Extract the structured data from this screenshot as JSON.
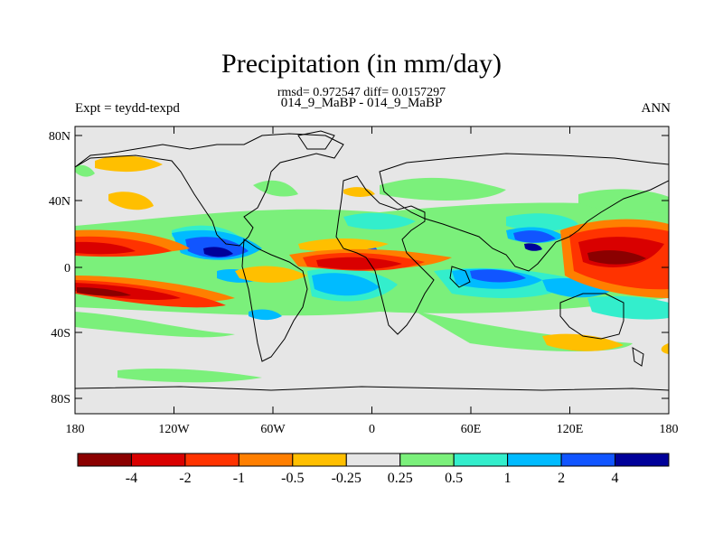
{
  "title": "Precipitation (in mm/day)",
  "stats_line": "rmsd= 0.972547 diff= 0.0157297",
  "case_line": "014_9_MaBP - 014_9_MaBP",
  "left_string": "Expt = teydd-texpd",
  "right_string": "ANN",
  "lat_labels": [
    "80N",
    "40N",
    "0",
    "40S",
    "80S"
  ],
  "lon_labels": [
    "180",
    "120W",
    "60W",
    "0",
    "60E",
    "120E",
    "180"
  ],
  "colorbar": {
    "colors": [
      "#8b0000",
      "#d90000",
      "#ff3300",
      "#ff7f00",
      "#ffbf00",
      "#e6e6e6",
      "#7bf07b",
      "#33eecc",
      "#00bbff",
      "#1155ff",
      "#000099"
    ],
    "labels": [
      "-4",
      "-2",
      "-1",
      "-0.5",
      "-0.25",
      "0.25",
      "0.5",
      "1",
      "2",
      "4"
    ]
  }
}
